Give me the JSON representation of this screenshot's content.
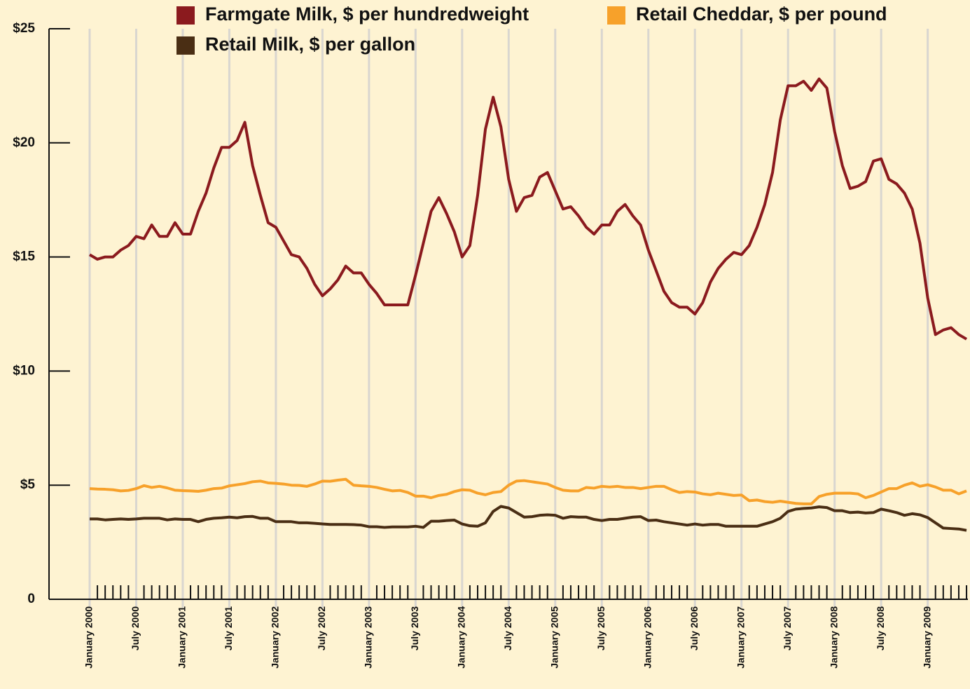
{
  "chart_data": {
    "type": "line",
    "categories": [
      "January 2000",
      null,
      null,
      null,
      null,
      null,
      "July 2000",
      null,
      null,
      null,
      null,
      null,
      "January 2001",
      null,
      null,
      null,
      null,
      null,
      "July 2001",
      null,
      null,
      null,
      null,
      null,
      "January 2002",
      null,
      null,
      null,
      null,
      null,
      "July 2002",
      null,
      null,
      null,
      null,
      null,
      "January 2003",
      null,
      null,
      null,
      null,
      null,
      "July 2003",
      null,
      null,
      null,
      null,
      null,
      "January 2004",
      null,
      null,
      null,
      null,
      null,
      "July 2004",
      null,
      null,
      null,
      null,
      null,
      "January 2005",
      null,
      null,
      null,
      null,
      null,
      "July 2005",
      null,
      null,
      null,
      null,
      null,
      "January 2006",
      null,
      null,
      null,
      null,
      null,
      "July 2006",
      null,
      null,
      null,
      null,
      null,
      "January 2007",
      null,
      null,
      null,
      null,
      null,
      "July 2007",
      null,
      null,
      null,
      null,
      null,
      "January 2008",
      null,
      null,
      null,
      null,
      null,
      "July 2008",
      null,
      null,
      null,
      null,
      null,
      "January 2009",
      null,
      null,
      null,
      null,
      null
    ],
    "series": [
      {
        "name": "Farmgate Milk, $ per hundredweight",
        "color": "#8b1a1e",
        "values": [
          15.1,
          14.9,
          15.0,
          15.0,
          15.3,
          15.5,
          15.9,
          15.8,
          16.4,
          15.9,
          15.9,
          16.5,
          16.0,
          16.0,
          17.0,
          17.8,
          18.9,
          19.8,
          19.8,
          20.1,
          20.9,
          19.0,
          17.7,
          16.5,
          16.3,
          15.7,
          15.1,
          15.0,
          14.5,
          13.8,
          13.3,
          13.6,
          14.0,
          14.6,
          14.3,
          14.3,
          13.8,
          13.4,
          12.9,
          12.9,
          12.9,
          12.9,
          14.2,
          15.6,
          17.0,
          17.6,
          16.9,
          16.1,
          15.0,
          15.5,
          17.7,
          20.6,
          22.0,
          20.7,
          18.4,
          17.0,
          17.6,
          17.7,
          18.5,
          18.7,
          17.9,
          17.1,
          17.2,
          16.8,
          16.3,
          16.0,
          16.4,
          16.4,
          17.0,
          17.3,
          16.8,
          16.4,
          15.3,
          14.4,
          13.5,
          13.0,
          12.8,
          12.8,
          12.5,
          13.0,
          13.9,
          14.5,
          14.9,
          15.2,
          15.1,
          15.5,
          16.3,
          17.3,
          18.7,
          21.0,
          22.5,
          22.5,
          22.7,
          22.3,
          22.8,
          22.4,
          20.5,
          19.0,
          18.0,
          18.1,
          18.3,
          19.2,
          19.3,
          18.4,
          18.2,
          17.8,
          17.1,
          15.6,
          13.2,
          11.6,
          11.8,
          11.9,
          11.6,
          11.4
        ]
      },
      {
        "name": "Retail Cheddar, $ per pound",
        "color": "#f7a12a",
        "values": [
          4.85,
          4.83,
          4.82,
          4.8,
          4.75,
          4.77,
          4.85,
          4.98,
          4.9,
          4.95,
          4.88,
          4.78,
          4.76,
          4.75,
          4.73,
          4.78,
          4.85,
          4.87,
          4.97,
          5.02,
          5.07,
          5.15,
          5.18,
          5.1,
          5.08,
          5.05,
          5.0,
          4.99,
          4.95,
          5.05,
          5.18,
          5.17,
          5.22,
          5.26,
          5.0,
          4.97,
          4.95,
          4.9,
          4.82,
          4.75,
          4.77,
          4.68,
          4.52,
          4.52,
          4.45,
          4.55,
          4.6,
          4.72,
          4.8,
          4.78,
          4.65,
          4.58,
          4.68,
          4.72,
          5.0,
          5.18,
          5.2,
          5.15,
          5.1,
          5.05,
          4.9,
          4.78,
          4.75,
          4.75,
          4.9,
          4.87,
          4.95,
          4.92,
          4.95,
          4.9,
          4.9,
          4.85,
          4.9,
          4.95,
          4.95,
          4.8,
          4.68,
          4.72,
          4.7,
          4.62,
          4.58,
          4.65,
          4.6,
          4.55,
          4.57,
          4.32,
          4.35,
          4.28,
          4.25,
          4.3,
          4.25,
          4.2,
          4.18,
          4.18,
          4.5,
          4.6,
          4.65,
          4.65,
          4.65,
          4.62,
          4.45,
          4.55,
          4.7,
          4.85,
          4.85,
          5.0,
          5.1,
          4.95,
          5.02,
          4.92,
          4.78,
          4.78,
          4.62,
          4.75
        ]
      },
      {
        "name": "Retail Milk, $ per gallon",
        "color": "#4a2e14",
        "values": [
          3.52,
          3.52,
          3.48,
          3.5,
          3.52,
          3.5,
          3.52,
          3.55,
          3.55,
          3.55,
          3.48,
          3.52,
          3.5,
          3.5,
          3.4,
          3.5,
          3.55,
          3.57,
          3.6,
          3.57,
          3.62,
          3.63,
          3.55,
          3.55,
          3.4,
          3.4,
          3.4,
          3.35,
          3.35,
          3.33,
          3.3,
          3.28,
          3.28,
          3.28,
          3.27,
          3.25,
          3.18,
          3.18,
          3.15,
          3.17,
          3.17,
          3.17,
          3.2,
          3.15,
          3.42,
          3.42,
          3.45,
          3.47,
          3.3,
          3.22,
          3.2,
          3.35,
          3.85,
          4.07,
          4.0,
          3.8,
          3.6,
          3.62,
          3.68,
          3.7,
          3.68,
          3.55,
          3.62,
          3.6,
          3.6,
          3.5,
          3.45,
          3.5,
          3.5,
          3.55,
          3.6,
          3.62,
          3.45,
          3.47,
          3.4,
          3.35,
          3.3,
          3.25,
          3.3,
          3.25,
          3.28,
          3.28,
          3.2,
          3.2,
          3.2,
          3.2,
          3.2,
          3.3,
          3.4,
          3.55,
          3.85,
          3.95,
          3.98,
          4.0,
          4.05,
          4.02,
          3.88,
          3.88,
          3.8,
          3.82,
          3.78,
          3.8,
          3.95,
          3.88,
          3.8,
          3.68,
          3.75,
          3.7,
          3.58,
          3.35,
          3.12,
          3.1,
          3.08,
          3.02
        ]
      }
    ],
    "ylim": [
      0,
      25
    ],
    "yticks": [
      0,
      {
        "value": 5,
        "label": "$5"
      },
      {
        "value": 10,
        "label": "$10"
      },
      {
        "value": 15,
        "label": "$15"
      },
      {
        "value": 20,
        "label": "$20"
      },
      {
        "value": 25,
        "label": "$25"
      }
    ],
    "grid": true
  }
}
